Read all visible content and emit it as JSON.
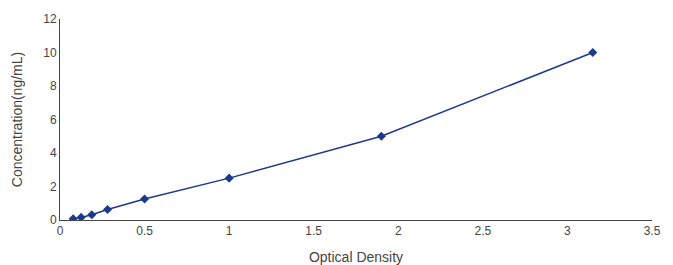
{
  "chart_data": {
    "type": "line",
    "x": [
      0.078,
      0.125,
      0.188,
      0.281,
      0.5,
      1.0,
      1.9,
      3.15
    ],
    "values": [
      0.078,
      0.156,
      0.312,
      0.625,
      1.25,
      2.5,
      5.0,
      10.0
    ],
    "color": "#1c3a8a",
    "marker": "diamond",
    "xlabel": "Optical Density",
    "ylabel": "Concentration(ng/mL)",
    "xlim": [
      0,
      3.5
    ],
    "ylim": [
      0,
      12
    ],
    "xticks": [
      0,
      0.5,
      1,
      1.5,
      2,
      2.5,
      3,
      3.5
    ],
    "yticks": [
      0,
      2,
      4,
      6,
      8,
      10,
      12
    ],
    "grid": false
  }
}
